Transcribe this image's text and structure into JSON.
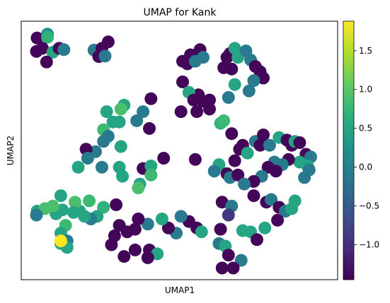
{
  "chart_data": {
    "type": "scatter",
    "title": "UMAP for Kank",
    "xlabel": "UMAP1",
    "ylabel": "UMAP2",
    "xlim": [
      0,
      100
    ],
    "ylim": [
      0,
      100
    ],
    "colormap": "viridis",
    "colorbar": {
      "range": [
        -1.45,
        1.88
      ],
      "ticks": [
        -1.0,
        -0.5,
        0.0,
        0.5,
        1.0,
        1.5
      ],
      "tick_labels": [
        "−1.0",
        "−0.5",
        "0.0",
        "0.5",
        "1.0",
        "1.5"
      ]
    },
    "points": [
      {
        "x": 5.0,
        "y": 93.5,
        "v": -1.4
      },
      {
        "x": 8.3,
        "y": 95.0,
        "v": 0.2
      },
      {
        "x": 8.3,
        "y": 93.8,
        "v": 0.7
      },
      {
        "x": 6.7,
        "y": 89.5,
        "v": -1.4
      },
      {
        "x": 4.8,
        "y": 88.3,
        "v": -1.4
      },
      {
        "x": 10.0,
        "y": 88.0,
        "v": 0.5
      },
      {
        "x": 12.0,
        "y": 89.5,
        "v": -1.4
      },
      {
        "x": 13.5,
        "y": 89.0,
        "v": -0.1
      },
      {
        "x": 8.0,
        "y": 84.2,
        "v": -1.4
      },
      {
        "x": 23.0,
        "y": 88.8,
        "v": -0.1
      },
      {
        "x": 27.5,
        "y": 92.0,
        "v": -1.4
      },
      {
        "x": 25.5,
        "y": 89.5,
        "v": -1.4
      },
      {
        "x": 24.5,
        "y": 86.3,
        "v": -1.4
      },
      {
        "x": 26.5,
        "y": 86.5,
        "v": -0.1
      },
      {
        "x": 51.0,
        "y": 84.5,
        "v": -1.4
      },
      {
        "x": 52.5,
        "y": 83.5,
        "v": -1.4
      },
      {
        "x": 53.5,
        "y": 87.0,
        "v": -1.4
      },
      {
        "x": 56.5,
        "y": 89.0,
        "v": -1.4
      },
      {
        "x": 57.5,
        "y": 86.0,
        "v": -0.1
      },
      {
        "x": 55.0,
        "y": 84.5,
        "v": -0.1
      },
      {
        "x": 51.0,
        "y": 76.5,
        "v": -1.4
      },
      {
        "x": 65.0,
        "y": 86.0,
        "v": -1.4
      },
      {
        "x": 66.0,
        "y": 87.5,
        "v": -1.4
      },
      {
        "x": 67.5,
        "y": 89.5,
        "v": 0.5
      },
      {
        "x": 68.5,
        "y": 86.0,
        "v": 0.5
      },
      {
        "x": 64.0,
        "y": 82.0,
        "v": -1.4
      },
      {
        "x": 66.5,
        "y": 81.5,
        "v": -1.4
      },
      {
        "x": 71.0,
        "y": 88.5,
        "v": -0.1
      },
      {
        "x": 72.5,
        "y": 85.0,
        "v": -0.1
      },
      {
        "x": 74.0,
        "y": 82.5,
        "v": -1.4
      },
      {
        "x": 75.5,
        "y": 80.5,
        "v": -1.4
      },
      {
        "x": 76.5,
        "y": 78.0,
        "v": -1.4
      },
      {
        "x": 73.5,
        "y": 77.0,
        "v": -0.1
      },
      {
        "x": 67.5,
        "y": 75.5,
        "v": 0.5
      },
      {
        "x": 72.0,
        "y": 73.0,
        "v": -0.1
      },
      {
        "x": 65.5,
        "y": 70.5,
        "v": -0.1
      },
      {
        "x": 41.0,
        "y": 70.0,
        "v": -1.4
      },
      {
        "x": 56.0,
        "y": 71.5,
        "v": -1.4
      },
      {
        "x": 53.0,
        "y": 72.5,
        "v": 0.5
      },
      {
        "x": 54.5,
        "y": 69.5,
        "v": -1.4
      },
      {
        "x": 57.5,
        "y": 69.0,
        "v": -1.4
      },
      {
        "x": 59.5,
        "y": 69.5,
        "v": -1.4
      },
      {
        "x": 55.5,
        "y": 65.0,
        "v": -1.4
      },
      {
        "x": 50.5,
        "y": 65.0,
        "v": -1.4
      },
      {
        "x": 63.0,
        "y": 60.5,
        "v": 0.7
      },
      {
        "x": 64.0,
        "y": 61.5,
        "v": 0.8
      },
      {
        "x": 32.5,
        "y": 67.5,
        "v": 0.5
      },
      {
        "x": 31.5,
        "y": 66.0,
        "v": 0.9
      },
      {
        "x": 27.0,
        "y": 65.0,
        "v": 0.5
      },
      {
        "x": 29.0,
        "y": 61.0,
        "v": 0.5
      },
      {
        "x": 31.0,
        "y": 61.0,
        "v": 0.5
      },
      {
        "x": 38.5,
        "y": 65.0,
        "v": -0.1
      },
      {
        "x": 36.5,
        "y": 61.5,
        "v": -0.1
      },
      {
        "x": 40.5,
        "y": 58.5,
        "v": -1.4
      },
      {
        "x": 26.0,
        "y": 58.0,
        "v": 0.8
      },
      {
        "x": 27.5,
        "y": 55.5,
        "v": -0.1
      },
      {
        "x": 26.0,
        "y": 53.5,
        "v": -0.1
      },
      {
        "x": 31.5,
        "y": 51.5,
        "v": 0.5
      },
      {
        "x": 23.5,
        "y": 49.5,
        "v": -0.1
      },
      {
        "x": 20.5,
        "y": 50.5,
        "v": -1.4
      },
      {
        "x": 21.0,
        "y": 47.0,
        "v": -0.1
      },
      {
        "x": 18.0,
        "y": 43.5,
        "v": 0.5
      },
      {
        "x": 25.5,
        "y": 43.5,
        "v": -0.1
      },
      {
        "x": 31.0,
        "y": 43.5,
        "v": 0.5
      },
      {
        "x": 32.0,
        "y": 40.0,
        "v": 0.5
      },
      {
        "x": 38.5,
        "y": 43.0,
        "v": -1.4
      },
      {
        "x": 40.5,
        "y": 43.0,
        "v": -1.4
      },
      {
        "x": 41.0,
        "y": 44.0,
        "v": 0.5
      },
      {
        "x": 45.0,
        "y": 47.0,
        "v": -1.4
      },
      {
        "x": 41.0,
        "y": 40.5,
        "v": 0.8
      },
      {
        "x": 37.5,
        "y": 37.0,
        "v": 0.5
      },
      {
        "x": 37.0,
        "y": 35.5,
        "v": 0.9
      },
      {
        "x": 55.0,
        "y": 46.5,
        "v": -1.4
      },
      {
        "x": 59.5,
        "y": 66.0,
        "v": -1.4
      },
      {
        "x": 66.5,
        "y": 56.5,
        "v": -1.4
      },
      {
        "x": 69.0,
        "y": 50.5,
        "v": -1.4
      },
      {
        "x": 70.0,
        "y": 52.0,
        "v": -1.4
      },
      {
        "x": 71.5,
        "y": 49.0,
        "v": 0.5
      },
      {
        "x": 67.5,
        "y": 46.0,
        "v": -1.4
      },
      {
        "x": 62.5,
        "y": 44.5,
        "v": 0.5
      },
      {
        "x": 61.0,
        "y": 42.0,
        "v": -0.1
      },
      {
        "x": 65.0,
        "y": 41.0,
        "v": -1.4
      },
      {
        "x": 66.0,
        "y": 39.5,
        "v": -0.1
      },
      {
        "x": 68.5,
        "y": 40.5,
        "v": -1.4
      },
      {
        "x": 74.0,
        "y": 53.5,
        "v": -0.1
      },
      {
        "x": 75.5,
        "y": 52.0,
        "v": -1.4
      },
      {
        "x": 76.5,
        "y": 56.0,
        "v": -1.4
      },
      {
        "x": 78.5,
        "y": 52.0,
        "v": -0.1
      },
      {
        "x": 81.5,
        "y": 55.0,
        "v": 0.5
      },
      {
        "x": 84.0,
        "y": 54.0,
        "v": -1.4
      },
      {
        "x": 85.5,
        "y": 52.0,
        "v": -1.4
      },
      {
        "x": 86.5,
        "y": 53.5,
        "v": 0.5
      },
      {
        "x": 88.0,
        "y": 53.0,
        "v": -1.4
      },
      {
        "x": 90.0,
        "y": 48.5,
        "v": -1.4
      },
      {
        "x": 91.5,
        "y": 47.5,
        "v": -0.1
      },
      {
        "x": 88.0,
        "y": 45.5,
        "v": 0.5
      },
      {
        "x": 90.5,
        "y": 44.0,
        "v": 0.5
      },
      {
        "x": 91.0,
        "y": 42.5,
        "v": -0.1
      },
      {
        "x": 89.5,
        "y": 39.5,
        "v": -0.1
      },
      {
        "x": 84.5,
        "y": 46.5,
        "v": -1.4
      },
      {
        "x": 82.5,
        "y": 44.5,
        "v": -0.1
      },
      {
        "x": 80.0,
        "y": 45.5,
        "v": -0.1
      },
      {
        "x": 78.0,
        "y": 43.5,
        "v": -1.4
      },
      {
        "x": 80.5,
        "y": 42.0,
        "v": -1.4
      },
      {
        "x": 76.0,
        "y": 40.0,
        "v": -0.1
      },
      {
        "x": 73.5,
        "y": 38.0,
        "v": -1.4
      },
      {
        "x": 70.5,
        "y": 37.0,
        "v": -0.1
      },
      {
        "x": 73.5,
        "y": 32.5,
        "v": -1.4
      },
      {
        "x": 77.5,
        "y": 30.0,
        "v": -1.4
      },
      {
        "x": 79.0,
        "y": 31.0,
        "v": -0.1
      },
      {
        "x": 81.5,
        "y": 28.0,
        "v": -1.4
      },
      {
        "x": 83.5,
        "y": 26.5,
        "v": -0.1
      },
      {
        "x": 86.5,
        "y": 30.5,
        "v": 0.5
      },
      {
        "x": 85.5,
        "y": 27.5,
        "v": 0.5
      },
      {
        "x": 81.0,
        "y": 23.0,
        "v": -1.4
      },
      {
        "x": 77.0,
        "y": 20.0,
        "v": 0.5
      },
      {
        "x": 63.5,
        "y": 30.0,
        "v": -1.4
      },
      {
        "x": 66.5,
        "y": 28.5,
        "v": -0.1
      },
      {
        "x": 65.5,
        "y": 25.0,
        "v": -0.9
      },
      {
        "x": 70.0,
        "y": 19.0,
        "v": 0.5
      },
      {
        "x": 72.5,
        "y": 18.5,
        "v": 0.5
      },
      {
        "x": 74.5,
        "y": 15.5,
        "v": -1.4
      },
      {
        "x": 63.0,
        "y": 19.5,
        "v": -1.4
      },
      {
        "x": 62.5,
        "y": 14.0,
        "v": -0.1
      },
      {
        "x": 64.5,
        "y": 13.0,
        "v": 0.5
      },
      {
        "x": 65.5,
        "y": 9.5,
        "v": -1.4
      },
      {
        "x": 69.5,
        "y": 7.5,
        "v": -0.1
      },
      {
        "x": 63.5,
        "y": 4.5,
        "v": -1.4
      },
      {
        "x": 67.0,
        "y": 4.5,
        "v": -1.4
      },
      {
        "x": 53.0,
        "y": 22.5,
        "v": -1.4
      },
      {
        "x": 55.5,
        "y": 20.0,
        "v": -1.4
      },
      {
        "x": 57.0,
        "y": 18.5,
        "v": 0.5
      },
      {
        "x": 50.5,
        "y": 24.5,
        "v": -0.1
      },
      {
        "x": 49.0,
        "y": 18.0,
        "v": -0.1
      },
      {
        "x": 46.5,
        "y": 20.0,
        "v": -1.4
      },
      {
        "x": 44.5,
        "y": 23.5,
        "v": 0.5
      },
      {
        "x": 40.0,
        "y": 21.5,
        "v": -0.1
      },
      {
        "x": 37.0,
        "y": 23.5,
        "v": -1.4
      },
      {
        "x": 36.0,
        "y": 19.5,
        "v": -1.4
      },
      {
        "x": 33.5,
        "y": 18.5,
        "v": -1.4
      },
      {
        "x": 31.0,
        "y": 21.0,
        "v": -1.4
      },
      {
        "x": 29.5,
        "y": 17.0,
        "v": -1.4
      },
      {
        "x": 28.5,
        "y": 13.5,
        "v": -1.4
      },
      {
        "x": 36.0,
        "y": 11.5,
        "v": -1.4
      },
      {
        "x": 40.5,
        "y": 11.5,
        "v": -1.4
      },
      {
        "x": 43.0,
        "y": 10.0,
        "v": 0.5
      },
      {
        "x": 40.0,
        "y": 8.5,
        "v": -1.4
      },
      {
        "x": 32.5,
        "y": 9.0,
        "v": -1.4
      },
      {
        "x": 30.0,
        "y": 29.0,
        "v": -1.4
      },
      {
        "x": 26.0,
        "y": 28.0,
        "v": 0.7
      },
      {
        "x": 24.0,
        "y": 24.5,
        "v": 0.5
      },
      {
        "x": 22.0,
        "y": 23.5,
        "v": -0.1
      },
      {
        "x": 20.0,
        "y": 24.5,
        "v": 0.5
      },
      {
        "x": 18.5,
        "y": 26.5,
        "v": 0.5
      },
      {
        "x": 21.5,
        "y": 30.5,
        "v": 0.8
      },
      {
        "x": 17.0,
        "y": 30.0,
        "v": 0.9
      },
      {
        "x": 16.5,
        "y": 26.0,
        "v": 0.5
      },
      {
        "x": 13.0,
        "y": 27.0,
        "v": 0.5
      },
      {
        "x": 11.0,
        "y": 25.5,
        "v": 0.5
      },
      {
        "x": 10.0,
        "y": 28.5,
        "v": 0.9
      },
      {
        "x": 12.5,
        "y": 32.5,
        "v": 0.5
      },
      {
        "x": 5.0,
        "y": 26.5,
        "v": 0.5
      },
      {
        "x": 7.5,
        "y": 27.5,
        "v": 0.9
      },
      {
        "x": 4.8,
        "y": 25.0,
        "v": -0.1
      },
      {
        "x": 14.0,
        "y": 21.0,
        "v": 0.8
      },
      {
        "x": 12.5,
        "y": 18.0,
        "v": 0.5
      },
      {
        "x": 14.5,
        "y": 15.0,
        "v": -0.1
      },
      {
        "x": 12.5,
        "y": 14.0,
        "v": 0.5
      },
      {
        "x": 14.5,
        "y": 12.5,
        "v": 0.5
      },
      {
        "x": 12.5,
        "y": 15.0,
        "v": 1.88
      }
    ]
  }
}
